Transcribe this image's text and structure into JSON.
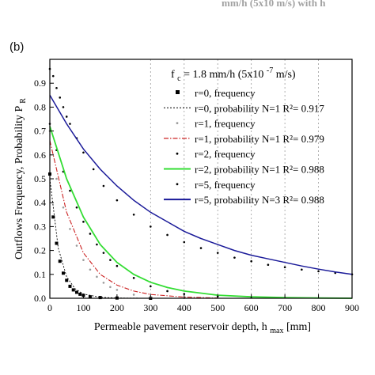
{
  "clipped_caption": "mm/h (5x10  m/s) with    h",
  "panel_label": "(b)",
  "chart_data": {
    "type": "line",
    "ylabel": {
      "main": "Outflows Frequency, Probability P",
      "sub": "R"
    },
    "xlabel": {
      "main": "Permeable pavement reservoir depth, h",
      "sub": "max",
      "tail": "[mm]"
    },
    "xlim": [
      0,
      900
    ],
    "ylim": [
      0,
      1.0
    ],
    "x_ticks": [
      "0",
      "100",
      "200",
      "300",
      "400",
      "500",
      "600",
      "700",
      "800",
      "900"
    ],
    "y_ticks": [
      "0.0",
      "0.1",
      "0.2",
      "0.3",
      "0.4",
      "0.5",
      "0.6",
      "0.7",
      "0.8",
      "0.9"
    ],
    "grid_x": [
      300,
      400,
      500,
      600,
      700,
      800,
      900
    ],
    "annotation": {
      "pre": "f",
      "sub": "c",
      "mid": " = 1.8 mm/h (5x10",
      "sup": "-7",
      "post": " m/s)"
    },
    "legend_placement": "top-right",
    "legend": [
      {
        "label": "r=0, frequency",
        "kind": "square-marker",
        "color": "#000000"
      },
      {
        "label": "r=0, probability N=1 R²= 0.917",
        "kind": "short-dash",
        "color": "#000000"
      },
      {
        "label": "r=1, frequency",
        "kind": "dot-marker",
        "color": "#9a9a9a"
      },
      {
        "label": "r=1, probability N=1 R²= 0.979",
        "kind": "dash-dot",
        "color": "#cc2222"
      },
      {
        "label": "r=2, frequency",
        "kind": "dot-marker",
        "color": "#000000"
      },
      {
        "label": "r=2, probability N=1 R²= 0.988",
        "kind": "solid",
        "color": "#33dd33"
      },
      {
        "label": "r=5, frequency",
        "kind": "dot-marker",
        "color": "#000000"
      },
      {
        "label": "r=5, probability N=3 R²= 0.988",
        "kind": "solid",
        "color": "#1a1a99"
      }
    ],
    "series": [
      {
        "name": "r=0, frequency",
        "style": "square-marker",
        "color": "#000000",
        "x": [
          0,
          10,
          20,
          30,
          40,
          50,
          60,
          70,
          80,
          90,
          100,
          120,
          150,
          200,
          300
        ],
        "y": [
          0.52,
          0.34,
          0.23,
          0.155,
          0.105,
          0.075,
          0.05,
          0.035,
          0.025,
          0.017,
          0.012,
          0.006,
          0.003,
          0.001,
          0.0
        ]
      },
      {
        "name": "r=0, probability N=1 R²= 0.917",
        "style": "short-dash",
        "color": "#000000",
        "x": [
          0,
          25,
          50,
          75,
          100,
          150,
          200,
          300,
          400
        ],
        "y": [
          0.5,
          0.21,
          0.09,
          0.04,
          0.018,
          0.004,
          0.001,
          0.0,
          0.0
        ]
      },
      {
        "name": "r=1, frequency",
        "style": "dot-marker",
        "color": "#9a9a9a",
        "x": [
          0,
          20,
          40,
          60,
          80,
          100,
          120,
          140,
          160,
          180,
          200,
          250,
          300,
          400
        ],
        "y": [
          0.7,
          0.5,
          0.38,
          0.29,
          0.22,
          0.16,
          0.12,
          0.09,
          0.065,
          0.047,
          0.035,
          0.015,
          0.006,
          0.001
        ]
      },
      {
        "name": "r=1, probability N=1 R²= 0.979",
        "style": "dash-dot",
        "color": "#cc2222",
        "x": [
          0,
          50,
          100,
          150,
          200,
          250,
          300,
          400,
          500
        ],
        "y": [
          0.66,
          0.36,
          0.19,
          0.1,
          0.055,
          0.03,
          0.016,
          0.005,
          0.001
        ]
      },
      {
        "name": "r=2, frequency",
        "style": "dot-marker",
        "color": "#000000",
        "x": [
          0,
          20,
          40,
          60,
          80,
          100,
          120,
          140,
          160,
          180,
          200,
          250,
          300,
          350,
          400,
          500,
          600
        ],
        "y": [
          0.73,
          0.62,
          0.53,
          0.45,
          0.38,
          0.32,
          0.27,
          0.225,
          0.19,
          0.16,
          0.135,
          0.085,
          0.05,
          0.03,
          0.018,
          0.008,
          0.003
        ]
      },
      {
        "name": "r=2, probability N=1 R²= 0.988",
        "style": "solid",
        "color": "#33dd33",
        "x": [
          0,
          50,
          100,
          150,
          200,
          250,
          300,
          350,
          400,
          500,
          600,
          700,
          800,
          900
        ],
        "y": [
          0.72,
          0.5,
          0.34,
          0.225,
          0.15,
          0.1,
          0.067,
          0.045,
          0.03,
          0.013,
          0.006,
          0.003,
          0.001,
          0.0
        ]
      },
      {
        "name": "r=5, frequency",
        "style": "dot-marker",
        "color": "#000000",
        "x": [
          0,
          10,
          20,
          30,
          40,
          50,
          60,
          80,
          100,
          130,
          160,
          200,
          250,
          300,
          350,
          400,
          450,
          500,
          550,
          600,
          650,
          700,
          750,
          800,
          850,
          900
        ],
        "y": [
          0.96,
          0.93,
          0.88,
          0.84,
          0.8,
          0.76,
          0.73,
          0.67,
          0.61,
          0.54,
          0.47,
          0.41,
          0.35,
          0.3,
          0.265,
          0.235,
          0.21,
          0.19,
          0.17,
          0.155,
          0.14,
          0.13,
          0.12,
          0.113,
          0.106,
          0.1
        ]
      },
      {
        "name": "r=5, probability N=3 R²= 0.988",
        "style": "solid",
        "color": "#1a1a99",
        "x": [
          0,
          50,
          100,
          150,
          200,
          250,
          300,
          350,
          400,
          450,
          500,
          550,
          600,
          650,
          700,
          750,
          800,
          850,
          900
        ],
        "y": [
          0.85,
          0.73,
          0.625,
          0.54,
          0.47,
          0.41,
          0.36,
          0.32,
          0.28,
          0.25,
          0.225,
          0.2,
          0.18,
          0.165,
          0.15,
          0.135,
          0.122,
          0.11,
          0.1
        ]
      }
    ]
  }
}
